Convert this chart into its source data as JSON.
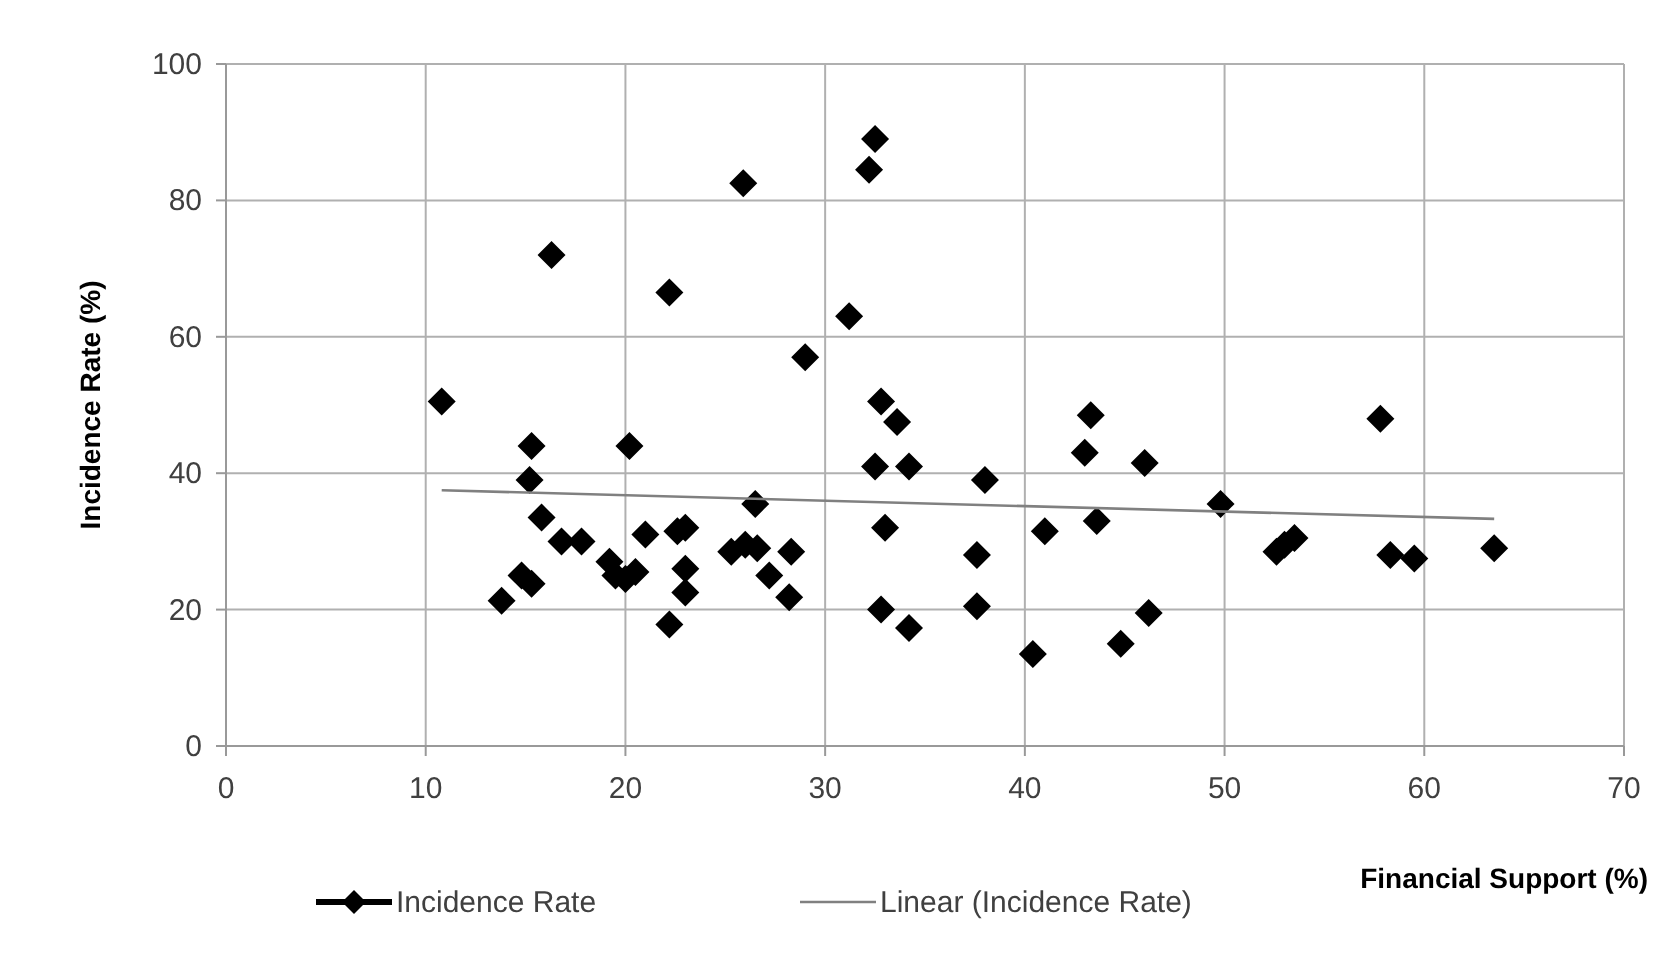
{
  "chart_data": {
    "type": "scatter",
    "xlabel": "Financial Support (%)",
    "ylabel": "Incidence Rate (%)",
    "xlim": [
      0,
      70
    ],
    "xticks": [
      0,
      10,
      20,
      30,
      40,
      50,
      60,
      70
    ],
    "ylim": [
      0,
      100
    ],
    "yticks": [
      0,
      20,
      40,
      60,
      80,
      100
    ],
    "grid": true,
    "legend": "bottom",
    "marker": "diamond",
    "series": [
      {
        "name": "Incidence Rate",
        "color": "#000000",
        "x": [
          10.8,
          13.8,
          14.8,
          15.2,
          15.3,
          15.3,
          15.8,
          16.3,
          16.8,
          17.8,
          19.2,
          19.5,
          20,
          20.2,
          20.5,
          21,
          22.2,
          22.2,
          22.6,
          23,
          23,
          23,
          25.3,
          25.9,
          26,
          26.5,
          26.6,
          27.2,
          28.2,
          28.3,
          29,
          31.2,
          32.2,
          32.5,
          32.5,
          32.8,
          32.8,
          33,
          33.6,
          34.2,
          34.2,
          37.6,
          37.6,
          38,
          40.4,
          41,
          43,
          43.3,
          43.6,
          44.8,
          46,
          46.2,
          49.8,
          52.6,
          53,
          53.5,
          57.8,
          58.3,
          59.5,
          63.5
        ],
        "values": [
          50.5,
          21.3,
          25,
          39,
          44,
          23.8,
          33.5,
          72,
          30,
          30,
          27,
          25,
          24.5,
          44,
          25.5,
          31,
          66.5,
          17.8,
          31.5,
          32,
          26,
          22.5,
          28.5,
          82.5,
          29.5,
          35.5,
          29,
          25,
          21.8,
          28.5,
          57,
          63,
          84.5,
          89,
          41,
          50.5,
          20,
          32,
          47.5,
          17.3,
          41,
          28,
          20.5,
          39,
          13.5,
          31.5,
          43,
          48.5,
          33,
          15,
          41.5,
          19.5,
          35.5,
          28.5,
          29.5,
          30.5,
          48,
          28,
          27.5,
          29
        ]
      },
      {
        "name": "Linear (Incidence Rate)",
        "color": "#808080",
        "type": "line",
        "marker": "none",
        "x": [
          10.8,
          63.5
        ],
        "values": [
          37.5,
          33.3
        ]
      }
    ]
  }
}
